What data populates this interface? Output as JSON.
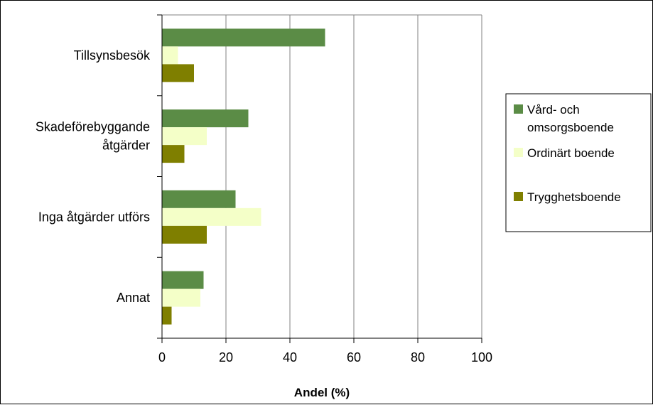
{
  "chart_data": {
    "type": "bar",
    "orientation": "horizontal",
    "categories": [
      "Tillsynsbesök",
      "Skadeförebyggande åtgärder",
      "Inga åtgärder utförs",
      "Annat"
    ],
    "category_lines": [
      [
        "Tillsynsbesök"
      ],
      [
        "Skadeförebyggande",
        "åtgärder"
      ],
      [
        "Inga åtgärder utförs"
      ],
      [
        "Annat"
      ]
    ],
    "series": [
      {
        "name": "Vård- och omsorgsboende",
        "legend_lines": [
          "Vård- och",
          "omsorgsboende"
        ],
        "color": "#5b8c46",
        "values": [
          51,
          27,
          23,
          13
        ]
      },
      {
        "name": "Ordinärt boende",
        "legend_lines": [
          "Ordinärt boende"
        ],
        "color": "#f4ffc8",
        "values": [
          5,
          14,
          31,
          12
        ]
      },
      {
        "name": "Trygghetsboende",
        "legend_lines": [
          "Trygghetsboende"
        ],
        "color": "#7f7f00",
        "values": [
          10,
          7,
          14,
          3
        ]
      }
    ],
    "xlabel": "Andel (%)",
    "ylabel": "",
    "xlim": [
      0,
      100
    ],
    "xticks": [
      "0",
      "20",
      "40",
      "60",
      "80",
      "100"
    ],
    "grid": true,
    "legend_position": "right"
  }
}
